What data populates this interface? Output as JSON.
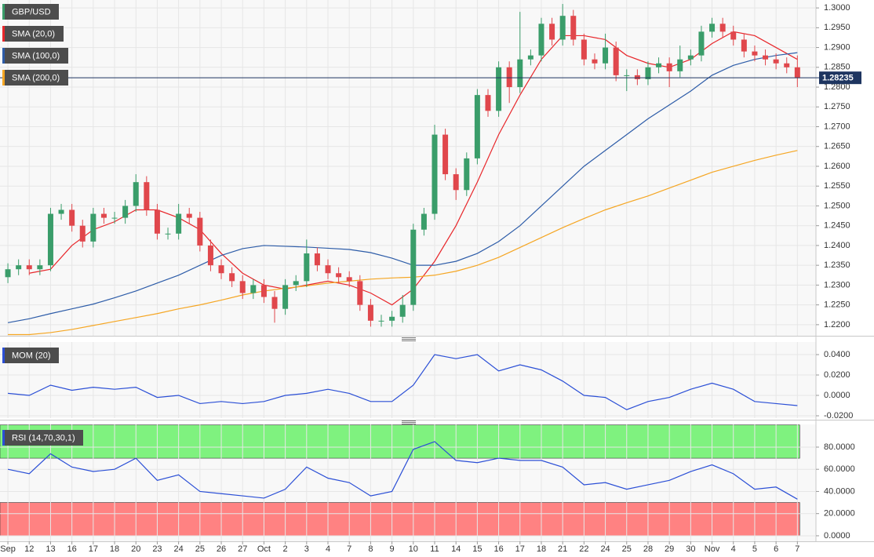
{
  "chart_data": [
    {
      "type": "candlestick",
      "symbol": "GBP/USD",
      "up_color": "#3a9d6a",
      "down_color": "#e0474c",
      "x": [
        0,
        0.5,
        1,
        1.5,
        2,
        2.5,
        3,
        3.5,
        4,
        4.5,
        5,
        5.5,
        6,
        6.5,
        7,
        7.5,
        8,
        8.5,
        9,
        9.5,
        10,
        10.5,
        11,
        11.5,
        12,
        12.5,
        13,
        13.5,
        14,
        14.5,
        15,
        15.5,
        16,
        16.5,
        17,
        17.5,
        18,
        18.5,
        19,
        19.5,
        20,
        20.5,
        21,
        21.5,
        22,
        22.5,
        23,
        23.5,
        24,
        24.5,
        25,
        25.5,
        26,
        26.5,
        27,
        27.5,
        28,
        28.5,
        29,
        29.5,
        30,
        30.5,
        31,
        31.5,
        32,
        32.5,
        33,
        33.5,
        34,
        34.5,
        35,
        35.5,
        36,
        36.5,
        37
      ],
      "open": [
        1.232,
        1.234,
        1.235,
        1.234,
        1.235,
        1.248,
        1.249,
        1.245,
        1.241,
        1.248,
        1.247,
        1.247,
        1.25,
        1.256,
        1.249,
        1.243,
        1.243,
        1.248,
        1.247,
        1.24,
        1.235,
        1.233,
        1.231,
        1.228,
        1.23,
        1.227,
        1.224,
        1.23,
        1.231,
        1.238,
        1.235,
        1.233,
        1.232,
        1.231,
        1.225,
        1.221,
        1.221,
        1.222,
        1.225,
        1.244,
        1.248,
        1.268,
        1.258,
        1.254,
        1.262,
        1.278,
        1.274,
        1.285,
        1.28,
        1.287,
        1.288,
        1.296,
        1.292,
        1.298,
        1.292,
        1.287,
        1.286,
        1.29,
        1.283,
        1.283,
        1.282,
        1.285,
        1.286,
        1.284,
        1.287,
        1.288,
        1.294,
        1.296,
        1.294,
        1.292,
        1.289,
        1.288,
        1.287,
        1.286,
        1.285
      ],
      "high": [
        1.2355,
        1.2365,
        1.2365,
        1.2365,
        1.2495,
        1.2505,
        1.2505,
        1.2465,
        1.2495,
        1.2495,
        1.2485,
        1.2515,
        1.258,
        1.2575,
        1.2505,
        1.2445,
        1.2505,
        1.2495,
        1.2485,
        1.2415,
        1.2365,
        1.2345,
        1.2325,
        1.2315,
        1.2315,
        1.2285,
        1.2315,
        1.2325,
        1.2415,
        1.2395,
        1.2365,
        1.2345,
        1.2335,
        1.2325,
        1.2265,
        1.2225,
        1.2235,
        1.2275,
        1.2455,
        1.2495,
        1.2705,
        1.2695,
        1.2595,
        1.2635,
        1.2795,
        1.2795,
        1.2865,
        1.2865,
        1.299,
        1.2895,
        1.2975,
        1.2975,
        1.301,
        1.2995,
        1.2935,
        1.2885,
        1.2935,
        1.2915,
        1.2845,
        1.2845,
        1.2865,
        1.2875,
        1.2875,
        1.2905,
        1.2895,
        1.2955,
        1.2975,
        1.2975,
        1.2955,
        1.2935,
        1.2905,
        1.2895,
        1.2885,
        1.2875,
        1.288
      ],
      "low": [
        1.2305,
        1.2325,
        1.2325,
        1.2325,
        1.2335,
        1.2465,
        1.2435,
        1.2395,
        1.2395,
        1.2455,
        1.2455,
        1.2455,
        1.2485,
        1.2475,
        1.2415,
        1.2415,
        1.2415,
        1.2455,
        1.2385,
        1.2335,
        1.2315,
        1.2295,
        1.2265,
        1.2265,
        1.2255,
        1.2205,
        1.2225,
        1.2285,
        1.2295,
        1.2335,
        1.2315,
        1.2305,
        1.2295,
        1.2235,
        1.2195,
        1.2195,
        1.2195,
        1.2205,
        1.2235,
        1.2425,
        1.2465,
        1.2565,
        1.2515,
        1.2525,
        1.2605,
        1.2725,
        1.2725,
        1.276,
        1.2785,
        1.2855,
        1.2865,
        1.2905,
        1.2905,
        1.2905,
        1.2855,
        1.2845,
        1.2845,
        1.2815,
        1.279,
        1.2805,
        1.2805,
        1.2835,
        1.28,
        1.2825,
        1.2855,
        1.2865,
        1.2925,
        1.2925,
        1.2905,
        1.2875,
        1.2865,
        1.2855,
        1.2845,
        1.2835,
        1.28
      ],
      "close": [
        1.234,
        1.235,
        1.234,
        1.235,
        1.248,
        1.249,
        1.245,
        1.241,
        1.248,
        1.247,
        1.247,
        1.25,
        1.256,
        1.249,
        1.243,
        1.243,
        1.248,
        1.247,
        1.24,
        1.235,
        1.233,
        1.231,
        1.228,
        1.23,
        1.227,
        1.224,
        1.23,
        1.231,
        1.238,
        1.235,
        1.233,
        1.232,
        1.231,
        1.225,
        1.221,
        1.221,
        1.222,
        1.225,
        1.244,
        1.248,
        1.268,
        1.258,
        1.254,
        1.262,
        1.278,
        1.274,
        1.285,
        1.28,
        1.287,
        1.288,
        1.296,
        1.292,
        1.298,
        1.292,
        1.287,
        1.286,
        1.29,
        1.283,
        1.283,
        1.282,
        1.285,
        1.286,
        1.284,
        1.287,
        1.288,
        1.294,
        1.296,
        1.294,
        1.292,
        1.289,
        1.288,
        1.287,
        1.286,
        1.285,
        1.28235
      ],
      "series": [
        {
          "name": "SMA (20,0)",
          "color": "#e8262a",
          "x": [
            1,
            2,
            3,
            4,
            5,
            6,
            7,
            8,
            9,
            10,
            11,
            12,
            13,
            14,
            15,
            16,
            17,
            18,
            19,
            20,
            21,
            22,
            23,
            24,
            25,
            26,
            27,
            28,
            29,
            30,
            31,
            32,
            33,
            34,
            35,
            36,
            37
          ],
          "values": [
            1.233,
            1.234,
            1.24,
            1.244,
            1.246,
            1.249,
            1.249,
            1.247,
            1.244,
            1.238,
            1.233,
            1.23,
            1.229,
            1.23,
            1.231,
            1.23,
            1.228,
            1.225,
            1.229,
            1.236,
            1.245,
            1.256,
            1.268,
            1.278,
            1.287,
            1.293,
            1.293,
            1.292,
            1.288,
            1.286,
            1.285,
            1.287,
            1.291,
            1.294,
            1.293,
            1.29,
            1.287
          ]
        },
        {
          "name": "SMA (100,0)",
          "color": "#2d5ca8",
          "x": [
            0,
            1,
            2,
            3,
            4,
            5,
            6,
            7,
            8,
            9,
            10,
            11,
            12,
            13,
            14,
            15,
            16,
            17,
            18,
            19,
            20,
            21,
            22,
            23,
            24,
            25,
            26,
            27,
            28,
            29,
            30,
            31,
            32,
            33,
            34,
            35,
            36,
            37
          ],
          "values": [
            1.2205,
            1.2215,
            1.2228,
            1.224,
            1.2252,
            1.2268,
            1.2285,
            1.2305,
            1.2325,
            1.235,
            1.2375,
            1.2392,
            1.24,
            1.2398,
            1.2396,
            1.2393,
            1.239,
            1.2382,
            1.2368,
            1.235,
            1.235,
            1.236,
            1.238,
            1.241,
            1.245,
            1.25,
            1.255,
            1.26,
            1.264,
            1.268,
            1.272,
            1.2755,
            1.279,
            1.283,
            1.2855,
            1.287,
            1.288,
            1.2887
          ]
        },
        {
          "name": "SMA (200,0)",
          "color": "#f5a623",
          "x": [
            0,
            1,
            2,
            3,
            4,
            5,
            6,
            7,
            8,
            9,
            10,
            11,
            12,
            13,
            14,
            15,
            16,
            17,
            18,
            19,
            20,
            21,
            22,
            23,
            24,
            25,
            26,
            27,
            28,
            29,
            30,
            31,
            32,
            33,
            34,
            35,
            36,
            37
          ],
          "values": [
            1.2175,
            1.2175,
            1.218,
            1.2188,
            1.2198,
            1.2208,
            1.2218,
            1.2228,
            1.224,
            1.225,
            1.2262,
            1.2275,
            1.2285,
            1.2292,
            1.2298,
            1.2305,
            1.231,
            1.2315,
            1.2318,
            1.232,
            1.2325,
            1.2335,
            1.235,
            1.237,
            1.2395,
            1.242,
            1.2445,
            1.2468,
            1.249,
            1.2508,
            1.2525,
            1.2545,
            1.2565,
            1.2585,
            1.26,
            1.2615,
            1.2628,
            1.264
          ]
        }
      ],
      "xlim": [
        -0.37,
        37.87
      ],
      "ylim": [
        1.2172,
        1.302
      ],
      "yticks": [
        {
          "value": 1.22,
          "label": "1.2200"
        },
        {
          "value": 1.225,
          "label": "1.2250"
        },
        {
          "value": 1.23,
          "label": "1.2300"
        },
        {
          "value": 1.235,
          "label": "1.2350"
        },
        {
          "value": 1.24,
          "label": "1.2400"
        },
        {
          "value": 1.245,
          "label": "1.2450"
        },
        {
          "value": 1.25,
          "label": "1.2500"
        },
        {
          "value": 1.255,
          "label": "1.2550"
        },
        {
          "value": 1.26,
          "label": "1.2600"
        },
        {
          "value": 1.265,
          "label": "1.2650"
        },
        {
          "value": 1.27,
          "label": "1.2700"
        },
        {
          "value": 1.275,
          "label": "1.2750"
        },
        {
          "value": 1.28,
          "label": "1.2800"
        },
        {
          "value": 1.285,
          "label": "1.2850"
        },
        {
          "value": 1.29,
          "label": "1.2900"
        },
        {
          "value": 1.295,
          "label": "1.2950"
        },
        {
          "value": 1.3,
          "label": "1.3000"
        }
      ],
      "grid": true,
      "last_price_color": "#1e3560"
    },
    {
      "type": "line",
      "series": [
        {
          "name": "MOM (20)",
          "color": "#2b4fd6",
          "x": [
            0,
            1,
            2,
            3,
            4,
            5,
            6,
            7,
            8,
            9,
            10,
            11,
            12,
            13,
            14,
            15,
            16,
            17,
            18,
            19,
            20,
            21,
            22,
            23,
            24,
            25,
            26,
            27,
            28,
            29,
            30,
            31,
            32,
            33,
            34,
            35,
            36,
            37
          ],
          "values": [
            0.002,
            0.0,
            0.01,
            0.005,
            0.008,
            0.006,
            0.008,
            -0.002,
            0.0,
            -0.008,
            -0.006,
            -0.008,
            -0.006,
            0.0,
            0.002,
            0.006,
            0.002,
            -0.006,
            -0.006,
            0.01,
            0.04,
            0.036,
            0.04,
            0.024,
            0.03,
            0.025,
            0.014,
            0.0,
            -0.002,
            -0.014,
            -0.006,
            -0.002,
            0.006,
            0.012,
            0.006,
            -0.006,
            -0.008,
            -0.01
          ]
        }
      ],
      "xlim": [
        -0.37,
        37.87
      ],
      "ylim": [
        -0.0223,
        0.0523
      ],
      "yticks": [
        {
          "value": -0.02,
          "label": "-0.0200"
        },
        {
          "value": 0,
          "label": "0.0000"
        },
        {
          "value": 0.02,
          "label": "0.0200"
        },
        {
          "value": 0.04,
          "label": "0.0400"
        }
      ],
      "grid": true
    },
    {
      "type": "line",
      "series": [
        {
          "name": "RSI (14,70,30,1)",
          "color": "#2b4fd6",
          "x": [
            0,
            1,
            2,
            3,
            4,
            5,
            6,
            7,
            8,
            9,
            10,
            11,
            12,
            13,
            14,
            15,
            16,
            17,
            18,
            19,
            20,
            21,
            22,
            23,
            24,
            25,
            26,
            27,
            28,
            29,
            30,
            31,
            32,
            33,
            34,
            35,
            36,
            37
          ],
          "values": [
            60,
            56,
            74,
            62,
            58,
            60,
            70,
            50,
            55,
            40,
            38,
            36,
            34,
            42,
            62,
            52,
            48,
            36,
            40,
            78,
            85,
            68,
            66,
            70,
            68,
            68,
            62,
            46,
            48,
            42,
            46,
            50,
            58,
            64,
            56,
            42,
            44,
            33
          ]
        }
      ],
      "bands": [
        {
          "from": 70,
          "to": 100,
          "color": "#7ff27f"
        },
        {
          "from": 0,
          "to": 30,
          "color": "#ff8282"
        }
      ],
      "xlim": [
        -0.37,
        37.87
      ],
      "ylim": [
        -5,
        100.5
      ],
      "yticks": [
        {
          "value": 0,
          "label": "0.0000"
        },
        {
          "value": 20,
          "label": "20.0000"
        },
        {
          "value": 40,
          "label": "40.0000"
        },
        {
          "value": 60,
          "label": "60.0000"
        },
        {
          "value": 80,
          "label": "80.0000"
        }
      ],
      "xticks": [
        {
          "value": 0,
          "label": "Sep"
        },
        {
          "value": 1,
          "label": "12"
        },
        {
          "value": 2,
          "label": "13"
        },
        {
          "value": 3,
          "label": "16"
        },
        {
          "value": 4,
          "label": "17"
        },
        {
          "value": 5,
          "label": "18"
        },
        {
          "value": 6,
          "label": "20"
        },
        {
          "value": 7,
          "label": "23"
        },
        {
          "value": 8,
          "label": "24"
        },
        {
          "value": 9,
          "label": "25"
        },
        {
          "value": 10,
          "label": "26"
        },
        {
          "value": 11,
          "label": "27"
        },
        {
          "value": 12,
          "label": "Oct"
        },
        {
          "value": 13,
          "label": "2"
        },
        {
          "value": 14,
          "label": "3"
        },
        {
          "value": 15,
          "label": "4"
        },
        {
          "value": 16,
          "label": "7"
        },
        {
          "value": 17,
          "label": "8"
        },
        {
          "value": 18,
          "label": "9"
        },
        {
          "value": 19,
          "label": "10"
        },
        {
          "value": 20,
          "label": "11"
        },
        {
          "value": 21,
          "label": "14"
        },
        {
          "value": 22,
          "label": "15"
        },
        {
          "value": 23,
          "label": "16"
        },
        {
          "value": 24,
          "label": "17"
        },
        {
          "value": 25,
          "label": "18"
        },
        {
          "value": 26,
          "label": "21"
        },
        {
          "value": 27,
          "label": "22"
        },
        {
          "value": 28,
          "label": "24"
        },
        {
          "value": 29,
          "label": "25"
        },
        {
          "value": 30,
          "label": "28"
        },
        {
          "value": 31,
          "label": "29"
        },
        {
          "value": 32,
          "label": "30"
        },
        {
          "value": 33,
          "label": "Nov"
        },
        {
          "value": 34,
          "label": "4"
        },
        {
          "value": 35,
          "label": "5"
        },
        {
          "value": 36,
          "label": "6"
        },
        {
          "value": 37,
          "label": "7"
        }
      ],
      "grid": true
    }
  ]
}
